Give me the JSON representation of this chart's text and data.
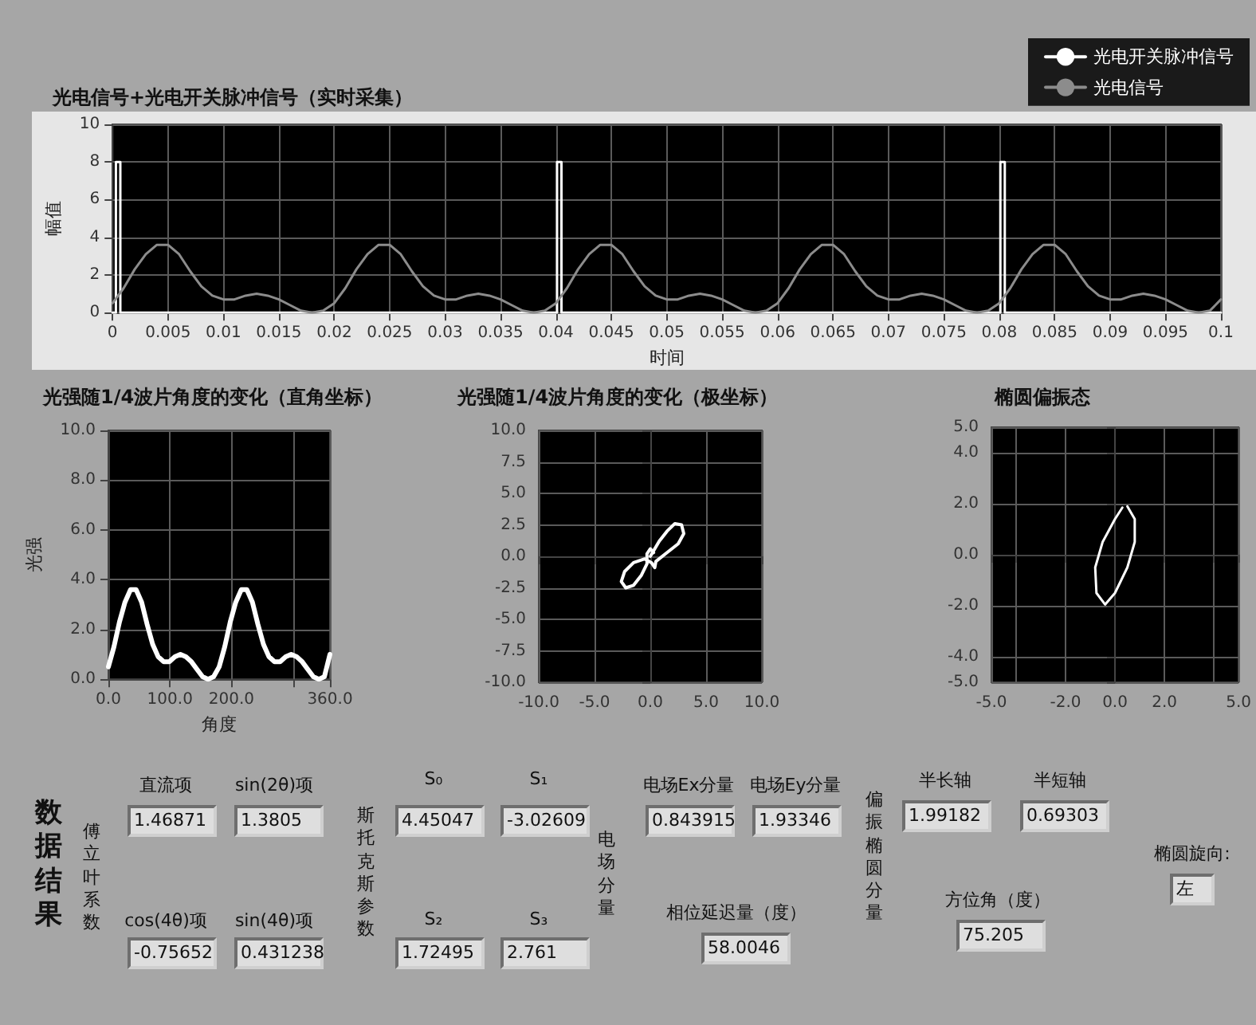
{
  "chart_data": [
    {
      "type": "line",
      "title": "光电信号+光电开关脉冲信号（实时采集）",
      "xlabel": "时间",
      "ylabel": "幅值",
      "xlim": [
        0,
        0.1
      ],
      "xticks": [
        0,
        0.005,
        0.01,
        0.015,
        0.02,
        0.025,
        0.03,
        0.035,
        0.04,
        0.045,
        0.05,
        0.055,
        0.06,
        0.065,
        0.07,
        0.075,
        0.08,
        0.085,
        0.09,
        0.095,
        0.1
      ],
      "ylim": [
        0,
        10
      ],
      "yticks": [
        0,
        2,
        4,
        6,
        8,
        10
      ],
      "grid": true,
      "legend": "top right",
      "marker": "none",
      "series": [
        {
          "name": "光电开关脉冲信号",
          "color": "#ffffff",
          "x": [
            0,
            0.0003,
            0.0003,
            0.0007,
            0.0007,
            0.0401,
            0.0401,
            0.0405,
            0.0405,
            0.0801,
            0.0801,
            0.0805,
            0.0805,
            0.1
          ],
          "values": [
            0,
            0,
            8,
            8,
            0,
            0,
            8,
            8,
            0,
            0,
            8,
            8,
            0,
            0
          ]
        },
        {
          "name": "光电信号",
          "color": "#8c8c8c",
          "x": [
            0,
            0.001,
            0.002,
            0.003,
            0.004,
            0.005,
            0.006,
            0.007,
            0.008,
            0.009,
            0.01,
            0.011,
            0.012,
            0.013,
            0.014,
            0.015,
            0.016,
            0.017,
            0.018,
            0.019,
            0.02,
            0.021,
            0.022,
            0.023,
            0.024,
            0.025,
            0.026,
            0.027,
            0.028,
            0.029,
            0.03,
            0.031,
            0.032,
            0.033,
            0.034,
            0.035,
            0.036,
            0.037,
            0.038,
            0.039,
            0.04,
            0.041,
            0.042,
            0.043,
            0.044,
            0.045,
            0.046,
            0.047,
            0.048,
            0.049,
            0.05,
            0.051,
            0.052,
            0.053,
            0.054,
            0.055,
            0.056,
            0.057,
            0.058,
            0.059,
            0.06,
            0.061,
            0.062,
            0.063,
            0.064,
            0.065,
            0.066,
            0.067,
            0.068,
            0.069,
            0.07,
            0.071,
            0.072,
            0.073,
            0.074,
            0.075,
            0.076,
            0.077,
            0.078,
            0.079,
            0.08,
            0.081,
            0.082,
            0.083,
            0.084,
            0.085,
            0.086,
            0.087,
            0.088,
            0.089,
            0.09,
            0.091,
            0.092,
            0.093,
            0.094,
            0.095,
            0.096,
            0.097,
            0.098,
            0.099,
            0.1
          ],
          "values": [
            0.5,
            1.3,
            2.3,
            3.1,
            3.6,
            3.6,
            3.1,
            2.2,
            1.4,
            0.9,
            0.7,
            0.7,
            0.9,
            1,
            0.9,
            0.7,
            0.4,
            0.1,
            0,
            0.1,
            0.5,
            1.3,
            2.3,
            3.1,
            3.6,
            3.6,
            3.1,
            2.2,
            1.4,
            0.9,
            0.7,
            0.7,
            0.9,
            1,
            0.9,
            0.7,
            0.4,
            0.1,
            0,
            0.1,
            0.5,
            1.3,
            2.3,
            3.1,
            3.6,
            3.6,
            3.1,
            2.2,
            1.4,
            0.9,
            0.7,
            0.7,
            0.9,
            1,
            0.9,
            0.7,
            0.4,
            0.1,
            0,
            0.1,
            0.5,
            1.3,
            2.3,
            3.1,
            3.6,
            3.6,
            3.1,
            2.2,
            1.4,
            0.9,
            0.7,
            0.7,
            0.9,
            1,
            0.9,
            0.7,
            0.4,
            0.1,
            0,
            0.1,
            0.5,
            1.3,
            2.3,
            3.1,
            3.6,
            3.6,
            3.1,
            2.2,
            1.4,
            0.9,
            0.7,
            0.7,
            0.9,
            1,
            0.9,
            0.7,
            0.4,
            0.1,
            0,
            0.1,
            0.7
          ]
        }
      ]
    },
    {
      "type": "line",
      "title": "光强随1/4波片角度的变化（直角坐标）",
      "xlabel": "角度",
      "ylabel": "光强",
      "xlim": [
        0,
        360
      ],
      "xticks": [
        {
          "value": 0,
          "label": "0.0"
        },
        {
          "value": 100,
          "label": "100.0"
        },
        {
          "value": 200,
          "label": "200.0"
        },
        {
          "value": 300,
          "label": null
        },
        {
          "value": 360,
          "label": "360.0"
        }
      ],
      "ylim": [
        0,
        10
      ],
      "yticks": [
        {
          "value": 0,
          "label": "0.0"
        },
        {
          "value": 2,
          "label": "2.0"
        },
        {
          "value": 4,
          "label": "4.0"
        },
        {
          "value": 6,
          "label": "6.0"
        },
        {
          "value": 8,
          "label": "8.0"
        },
        {
          "value": 10,
          "label": "10.0"
        }
      ],
      "grid": true,
      "marker": "none",
      "series": [
        {
          "color": "#ffffff",
          "x": [
            0,
            9,
            18,
            27,
            36,
            45,
            54,
            63,
            72,
            81,
            90,
            99,
            108,
            117,
            126,
            135,
            144,
            153,
            162,
            171,
            180,
            189,
            198,
            207,
            216,
            225,
            234,
            243,
            252,
            261,
            270,
            279,
            288,
            297,
            306,
            315,
            324,
            333,
            342,
            351,
            360
          ],
          "values": [
            0.5,
            1.3,
            2.3,
            3.1,
            3.6,
            3.6,
            3.1,
            2.2,
            1.4,
            0.9,
            0.7,
            0.7,
            0.9,
            1,
            0.9,
            0.7,
            0.4,
            0.1,
            0,
            0.1,
            0.5,
            1.3,
            2.3,
            3.1,
            3.6,
            3.6,
            3.1,
            2.2,
            1.4,
            0.9,
            0.7,
            0.7,
            0.9,
            1,
            0.9,
            0.7,
            0.4,
            0.1,
            0,
            0.1,
            1
          ]
        }
      ]
    },
    {
      "type": "line",
      "title": "光强随1/4波片角度的变化（极坐标）",
      "xlim": [
        -10,
        10
      ],
      "xticks": [
        {
          "value": -10,
          "label": "-10.0"
        },
        {
          "value": -5,
          "label": "-5.0"
        },
        {
          "value": 0,
          "label": "0.0"
        },
        {
          "value": 5,
          "label": "5.0"
        },
        {
          "value": 10,
          "label": "10.0"
        }
      ],
      "ylim": [
        -10,
        10
      ],
      "yticks": [
        {
          "value": -10,
          "label": "-10.0"
        },
        {
          "value": -7.5,
          "label": "-7.5"
        },
        {
          "value": -5,
          "label": "-5.0"
        },
        {
          "value": -2.5,
          "label": "-2.5"
        },
        {
          "value": 0,
          "label": "0.0"
        },
        {
          "value": 2.5,
          "label": "2.5"
        },
        {
          "value": 5,
          "label": "5.0"
        },
        {
          "value": 7.5,
          "label": "7.5"
        },
        {
          "value": 10,
          "label": "10.0"
        }
      ],
      "grid": true,
      "marker": "none",
      "series": [
        {
          "color": "#ffffff",
          "x": [
            0,
            0.8,
            1.5,
            2.2,
            2.8,
            3,
            2.5,
            1.5,
            0.5,
            0.4,
            0.1,
            -0.5,
            -1.5,
            -2.3,
            -2.6,
            -2.2,
            -1.5,
            -0.8,
            -0.3,
            -0.3,
            0,
            0.3
          ],
          "values": [
            0,
            1.2,
            2,
            2.6,
            2.5,
            1.8,
            1,
            0.3,
            -0.4,
            -0.9,
            -0.5,
            -0.2,
            -0.5,
            -1.2,
            -2,
            -2.5,
            -2.3,
            -1.5,
            -0.6,
            0.2,
            0.6,
            0.3
          ]
        }
      ]
    },
    {
      "type": "line",
      "title": "椭圆偏振态",
      "xlim": [
        -5,
        5
      ],
      "xticks": [
        {
          "value": -5,
          "label": "-5.0"
        },
        {
          "value": -4,
          "label": null
        },
        {
          "value": -2,
          "label": "-2.0"
        },
        {
          "value": 0,
          "label": "0.0"
        },
        {
          "value": 2,
          "label": "2.0"
        },
        {
          "value": 4,
          "label": null
        },
        {
          "value": 5,
          "label": "5.0"
        }
      ],
      "ylim": [
        -5,
        5
      ],
      "yticks": [
        {
          "value": -5,
          "label": "-5.0"
        },
        {
          "value": -4,
          "label": "-4.0"
        },
        {
          "value": -2,
          "label": "-2.0"
        },
        {
          "value": 0,
          "label": "0.0"
        },
        {
          "value": 2,
          "label": "2.0"
        },
        {
          "value": 4,
          "label": "4.0"
        },
        {
          "value": 5,
          "label": "5.0"
        }
      ],
      "grid": true,
      "marker": "none",
      "series": [
        {
          "color": "#ffffff",
          "x": [
            0.5,
            0.8,
            0.8,
            0.5,
            0,
            -0.4,
            -0.75,
            -0.8,
            -0.5,
            0,
            0.3
          ],
          "values": [
            1.9,
            1.4,
            0.5,
            -0.5,
            -1.5,
            -1.95,
            -1.5,
            -0.5,
            0.5,
            1.4,
            1.85
          ]
        }
      ]
    },
    {
      "type": "other",
      "annotations": [
        "数据结果",
        "傅立叶系数",
        "直流项",
        "1.46871",
        "sin(2θ)项",
        "1.3805",
        "cos(4θ)项",
        "-0.75652",
        "sin(4θ)项",
        "0.431238",
        "斯托克斯参数",
        "S₀",
        "4.45047",
        "S₁",
        "-3.02609",
        "S₂",
        "1.72495",
        "S₃",
        "2.761",
        "电场分量",
        "电场Ex分量",
        "0.843915",
        "电场Ey分量",
        "1.93346",
        "相位延迟量（度）",
        "58.0046",
        "偏振椭圆分量",
        "半长轴",
        "1.99182",
        "半短轴",
        "0.69303",
        "方位角（度）",
        "75.205",
        "椭圆旋向:",
        "左"
      ]
    }
  ]
}
